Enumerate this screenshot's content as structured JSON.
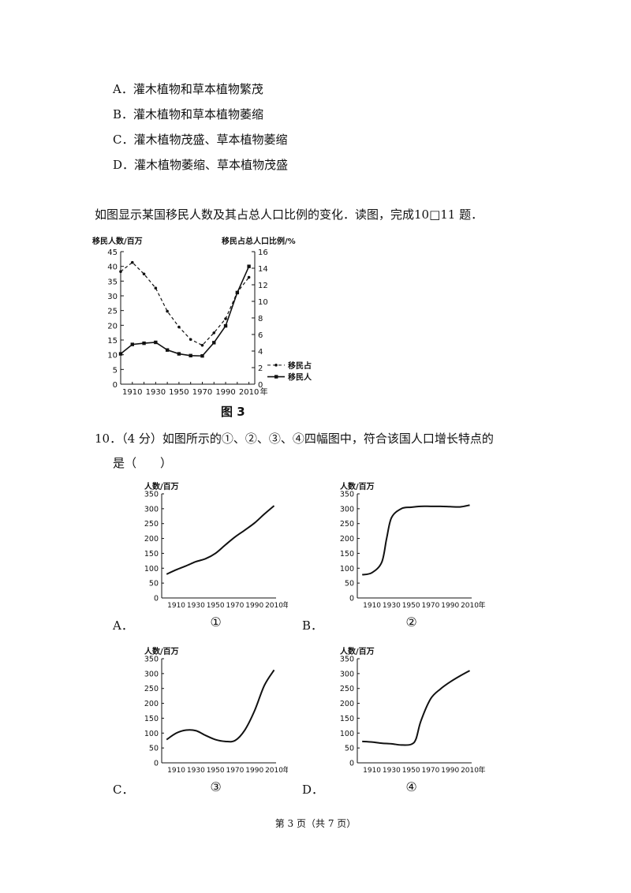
{
  "options_q9": [
    {
      "letter": "A．",
      "text": "灌木植物和草本植物繁茂"
    },
    {
      "letter": "B．",
      "text": "灌木植物和草本植物萎缩"
    },
    {
      "letter": "C．",
      "text": "灌木植物茂盛、草本植物萎缩"
    },
    {
      "letter": "D．",
      "text": "灌木植物萎缩、草本植物茂盛"
    }
  ],
  "intro": "如图显示某国移民人数及其占总人口比例的变化．读图，完成10□11 题．",
  "figure3_caption": "图 3",
  "question10": {
    "line1": "10．（4 分）如图所示的①、②、③、④四幅图中，符合该国人口增长特点的",
    "line2": "是（　　）"
  },
  "option_labels": {
    "A": "A．",
    "B": "B．",
    "C": "C．",
    "D": "D．"
  },
  "footer": "第 3 页（共 7 页）",
  "chart_data": [
    {
      "type": "line",
      "title": "",
      "ylabel_left": "移民人数/百万",
      "ylabel_right": "移民占总人口比例/%",
      "xunit": "年",
      "x": [
        1900,
        1910,
        1920,
        1930,
        1940,
        1950,
        1960,
        1970,
        1980,
        1990,
        2000,
        2010
      ],
      "x_ticks": [
        1910,
        1930,
        1950,
        1970,
        1990,
        2010
      ],
      "ylim_left": [
        0,
        45
      ],
      "yticks_left": [
        0,
        5,
        10,
        15,
        20,
        25,
        30,
        35,
        40,
        45
      ],
      "ylim_right": [
        0,
        16
      ],
      "yticks_right": [
        0,
        2,
        4,
        6,
        8,
        10,
        12,
        14,
        16
      ],
      "series": [
        {
          "name": "移民占总人口比例",
          "axis": "right",
          "style": "dashed",
          "values": [
            13.6,
            14.7,
            13.3,
            11.6,
            8.8,
            6.9,
            5.4,
            4.7,
            6.2,
            7.9,
            11.1,
            12.9
          ]
        },
        {
          "name": "移民人数",
          "axis": "left",
          "style": "solid",
          "values": [
            10.3,
            13.5,
            13.9,
            14.2,
            11.6,
            10.3,
            9.7,
            9.6,
            14.1,
            19.8,
            31.1,
            40.0
          ]
        }
      ],
      "legend": "right"
    },
    {
      "type": "line",
      "label": "①",
      "ylabel": "人数/百万",
      "xunit": "年",
      "x": [
        1900,
        1910,
        1920,
        1930,
        1940,
        1950,
        1960,
        1970,
        1980,
        1990,
        2000,
        2010
      ],
      "values": [
        80,
        95,
        108,
        122,
        132,
        150,
        178,
        205,
        228,
        252,
        282,
        310
      ],
      "x_ticks": [
        1910,
        1930,
        1950,
        1970,
        1990,
        2010
      ],
      "yticks": [
        0,
        50,
        100,
        150,
        200,
        250,
        300,
        350
      ],
      "ylim": [
        0,
        350
      ]
    },
    {
      "type": "line",
      "label": "②",
      "ylabel": "人数/百万",
      "xunit": "年",
      "x": [
        1900,
        1910,
        1920,
        1925,
        1930,
        1940,
        1950,
        1960,
        1970,
        1980,
        1990,
        2000,
        2010
      ],
      "values": [
        78,
        85,
        120,
        200,
        270,
        300,
        305,
        308,
        308,
        308,
        307,
        306,
        312
      ],
      "x_ticks": [
        1910,
        1930,
        1950,
        1970,
        1990,
        2010
      ],
      "yticks": [
        0,
        50,
        100,
        150,
        200,
        250,
        300,
        350
      ],
      "ylim": [
        0,
        350
      ]
    },
    {
      "type": "line",
      "label": "③",
      "ylabel": "人数/百万",
      "xunit": "年",
      "x": [
        1900,
        1910,
        1920,
        1930,
        1940,
        1950,
        1960,
        1970,
        1980,
        1990,
        2000,
        2010
      ],
      "values": [
        78,
        100,
        110,
        108,
        92,
        78,
        72,
        75,
        110,
        175,
        260,
        312
      ],
      "x_ticks": [
        1910,
        1930,
        1950,
        1970,
        1990,
        2010
      ],
      "yticks": [
        0,
        50,
        100,
        150,
        200,
        250,
        300,
        350
      ],
      "ylim": [
        0,
        350
      ]
    },
    {
      "type": "line",
      "label": "④",
      "ylabel": "人数/百万",
      "xunit": "年",
      "x": [
        1900,
        1910,
        1920,
        1930,
        1940,
        1950,
        1955,
        1960,
        1970,
        1980,
        1990,
        2000,
        2010
      ],
      "values": [
        72,
        70,
        66,
        64,
        60,
        62,
        80,
        140,
        215,
        248,
        272,
        292,
        310
      ],
      "x_ticks": [
        1910,
        1930,
        1950,
        1970,
        1990,
        2010
      ],
      "yticks": [
        0,
        50,
        100,
        150,
        200,
        250,
        300,
        350
      ],
      "ylim": [
        0,
        350
      ]
    }
  ]
}
